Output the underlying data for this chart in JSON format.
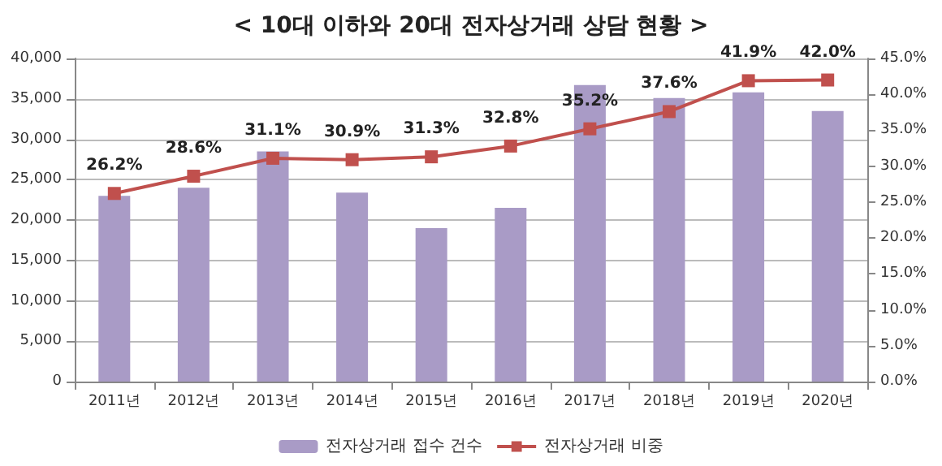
{
  "chart_data": {
    "type": "bar",
    "title": "< 10대 이하와 20대 전자상거래 상담 현황 >",
    "categories": [
      "2011년",
      "2012년",
      "2013년",
      "2014년",
      "2015년",
      "2016년",
      "2017년",
      "2018년",
      "2019년",
      "2020년"
    ],
    "series": [
      {
        "name": "전자상거래 접수 건수",
        "color": "#a99bc6",
        "values": [
          23000,
          24000,
          28500,
          23400,
          19000,
          21500,
          36700,
          35100,
          35800,
          33500
        ]
      },
      {
        "name": "전자상거래 비중",
        "type": "line",
        "axis": "y2",
        "color": "#c0504d",
        "marker": "square",
        "values": [
          26.2,
          28.6,
          31.1,
          30.9,
          31.3,
          32.8,
          35.2,
          37.6,
          41.9,
          42.0
        ],
        "value_labels": [
          "26.2%",
          "28.6%",
          "31.1%",
          "30.9%",
          "31.3%",
          "32.8%",
          "35.2%",
          "37.6%",
          "41.9%",
          "42.0%"
        ]
      }
    ],
    "ylim": [
      0,
      40000
    ],
    "yticks": [
      {
        "value": 0,
        "label": "0"
      },
      {
        "value": 5000,
        "label": "5,000"
      },
      {
        "value": 10000,
        "label": "10,000"
      },
      {
        "value": 15000,
        "label": "15,000"
      },
      {
        "value": 20000,
        "label": "20,000"
      },
      {
        "value": 25000,
        "label": "25,000"
      },
      {
        "value": 30000,
        "label": "30,000"
      },
      {
        "value": 35000,
        "label": "35,000"
      },
      {
        "value": 40000,
        "label": "40,000"
      }
    ],
    "y2lim": [
      0,
      45
    ],
    "y2ticks": [
      {
        "value": 0,
        "label": "0.0%"
      },
      {
        "value": 5,
        "label": "5.0%"
      },
      {
        "value": 10,
        "label": "10.0%"
      },
      {
        "value": 15,
        "label": "15.0%"
      },
      {
        "value": 20,
        "label": "20.0%"
      },
      {
        "value": 25,
        "label": "25.0%"
      },
      {
        "value": 30,
        "label": "30.0%"
      },
      {
        "value": 35,
        "label": "35.0%"
      },
      {
        "value": 40,
        "label": "40.0%"
      },
      {
        "value": 45,
        "label": "45.0%"
      }
    ],
    "grid": "y",
    "legend": "bottom"
  }
}
